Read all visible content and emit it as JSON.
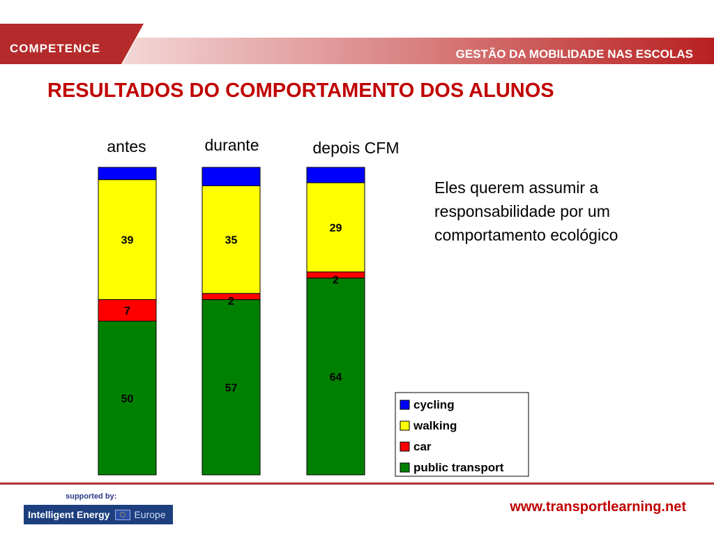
{
  "header": {
    "brand": "COMPETENCE",
    "title": "GESTÃO DA MOBILIDADE NAS ESCOLAS"
  },
  "page_title": "RESULTADOS DO COMPORTAMENTO DOS ALUNOS",
  "side_text": [
    "Eles querem assumir a",
    "responsabilidade por um",
    "comportamento ecológico"
  ],
  "footer": {
    "supported_by": "supported by:",
    "sponsor_name": "Intelligent Energy",
    "sponsor_region": "Europe",
    "website": "www.transportlearning.net"
  },
  "colors": {
    "accent": "#c00000",
    "cycling": "#0000ff",
    "walking": "#ffff00",
    "car": "#ff0000",
    "public_transport": "#008000"
  },
  "chart_data": {
    "type": "bar",
    "stacked": true,
    "categories": [
      "antes",
      "durante",
      "depois CFM"
    ],
    "series": [
      {
        "name": "public transport",
        "values": [
          50,
          57,
          64
        ],
        "color": "#008000"
      },
      {
        "name": "car",
        "values": [
          7,
          2,
          2
        ],
        "color": "#ff0000"
      },
      {
        "name": "walking",
        "values": [
          39,
          35,
          29
        ],
        "color": "#ffff00"
      },
      {
        "name": "cycling",
        "values": [
          4,
          6,
          5
        ],
        "color": "#0000ff"
      }
    ],
    "labeled_series": [
      "public transport",
      "car",
      "walking"
    ],
    "legend_order": [
      "cycling",
      "walking",
      "car",
      "public transport"
    ],
    "legend_position": "bottom-right",
    "ylim": [
      0,
      100
    ],
    "grid": false,
    "axes_visible": false,
    "title": "",
    "xlabel": "",
    "ylabel": ""
  }
}
